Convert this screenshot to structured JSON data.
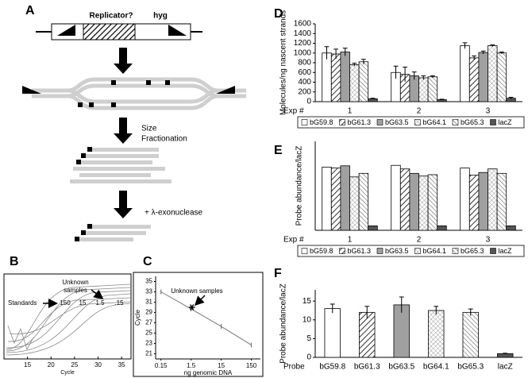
{
  "diagram": {
    "label": "A",
    "replicator": "Replicator?",
    "hyg": "hyg",
    "size_fractionation": [
      "Size",
      "Fractionation"
    ],
    "exonuclease": "+ λ-exonuclease"
  },
  "chart_data": [
    {
      "panel": "B",
      "type": "line",
      "xlabel": "Cycle",
      "xlim": [
        10,
        37
      ],
      "xticks": [
        15,
        20,
        25,
        30,
        35
      ],
      "annotation": [
        "Unknown",
        "samples"
      ],
      "standards_label": "Standards",
      "standard_labels": [
        "150",
        "15",
        "1.5",
        ".15"
      ]
    },
    {
      "panel": "C",
      "type": "line",
      "xlabel": "ng genomic DNA",
      "ylabel": "Cycle",
      "log_x": true,
      "x": [
        0.15,
        1.5,
        15,
        150
      ],
      "values": [
        33,
        29.7,
        26.3,
        22.7
      ],
      "color": "#777777",
      "xlim": [
        0.1,
        300
      ],
      "xticks": [
        0.15,
        1.5,
        15,
        150
      ],
      "ylim": [
        20,
        36
      ],
      "yticks": [
        21,
        23,
        25,
        27,
        29,
        31,
        33,
        35
      ],
      "annotation": "Unknown samples",
      "unknown_x": 1.6,
      "unknown_y": 30
    },
    {
      "panel": "D",
      "type": "bar",
      "ylabel": "Molecules/ng nascent strands",
      "xlabel": "Exp #",
      "categories": [
        "1",
        "2",
        "3"
      ],
      "ylim": [
        0,
        1600
      ],
      "yticks": [
        0,
        200,
        400,
        600,
        800,
        1000,
        1200,
        1400,
        1600
      ],
      "legend": "bottom",
      "series": [
        {
          "name": "bG59.8",
          "color": "#ffffff",
          "hatch": "none",
          "values": [
            1000,
            600,
            1150
          ],
          "errors": [
            130,
            130,
            60
          ]
        },
        {
          "name": "bG61.3",
          "color": "#ffffff",
          "hatch": "diagonal",
          "values": [
            980,
            560,
            900
          ],
          "errors": [
            100,
            150,
            40
          ]
        },
        {
          "name": "bG63.5",
          "color": "#a0a0a0",
          "hatch": "none",
          "values": [
            1020,
            530,
            1010
          ],
          "errors": [
            80,
            80,
            30
          ]
        },
        {
          "name": "bG64.1",
          "color": "#ffffff",
          "hatch": "cross",
          "values": [
            760,
            490,
            1150
          ],
          "errors": [
            30,
            40,
            20
          ]
        },
        {
          "name": "bG65.3",
          "color": "#ffffff",
          "hatch": "light-diagonal",
          "values": [
            820,
            510,
            1000
          ],
          "errors": [
            50,
            20,
            20
          ]
        },
        {
          "name": "lacZ",
          "color": "#555555",
          "hatch": "none",
          "values": [
            60,
            40,
            70
          ],
          "errors": [
            10,
            10,
            20
          ]
        }
      ]
    },
    {
      "panel": "E",
      "type": "bar",
      "ylabel": "Probe abundance/lacZ",
      "xlabel": "Exp #",
      "categories": [
        "1",
        "2",
        "3"
      ],
      "ylim": [
        0,
        20
      ],
      "legend": "bottom",
      "series": [
        {
          "name": "bG59.8",
          "color": "#ffffff",
          "hatch": "none",
          "values": [
            14.2,
            14.6,
            14
          ]
        },
        {
          "name": "bG61.3",
          "color": "#ffffff",
          "hatch": "diagonal",
          "values": [
            14,
            13.8,
            12.4
          ]
        },
        {
          "name": "bG63.5",
          "color": "#a0a0a0",
          "hatch": "none",
          "values": [
            14.5,
            12.8,
            13
          ]
        },
        {
          "name": "bG64.1",
          "color": "#ffffff",
          "hatch": "cross",
          "values": [
            12,
            12.2,
            13.8
          ]
        },
        {
          "name": "bG65.3",
          "color": "#ffffff",
          "hatch": "light-diagonal",
          "values": [
            12.8,
            12.5,
            12.8
          ]
        },
        {
          "name": "lacZ",
          "color": "#555555",
          "hatch": "none",
          "values": [
            1,
            1,
            1
          ]
        }
      ]
    },
    {
      "panel": "F",
      "type": "bar",
      "ylabel": "Probe abundance/lacZ",
      "xlabel": "Probe",
      "categories": [
        "bG59.8",
        "bG61.3",
        "bG63.5",
        "bG64.1",
        "bG65.3",
        "lacZ"
      ],
      "values": [
        13,
        12,
        14,
        12.5,
        12,
        1
      ],
      "errors": [
        1.2,
        1.6,
        2.1,
        1.1,
        0.9,
        0.1
      ],
      "colors": [
        "#ffffff",
        "#ffffff",
        "#a0a0a0",
        "#ffffff",
        "#ffffff",
        "#555555"
      ],
      "hatches": [
        "none",
        "diagonal",
        "none",
        "cross",
        "light-diagonal",
        "none"
      ],
      "ylim": [
        0,
        18
      ],
      "yticks": [
        0,
        5,
        10,
        15
      ]
    }
  ]
}
